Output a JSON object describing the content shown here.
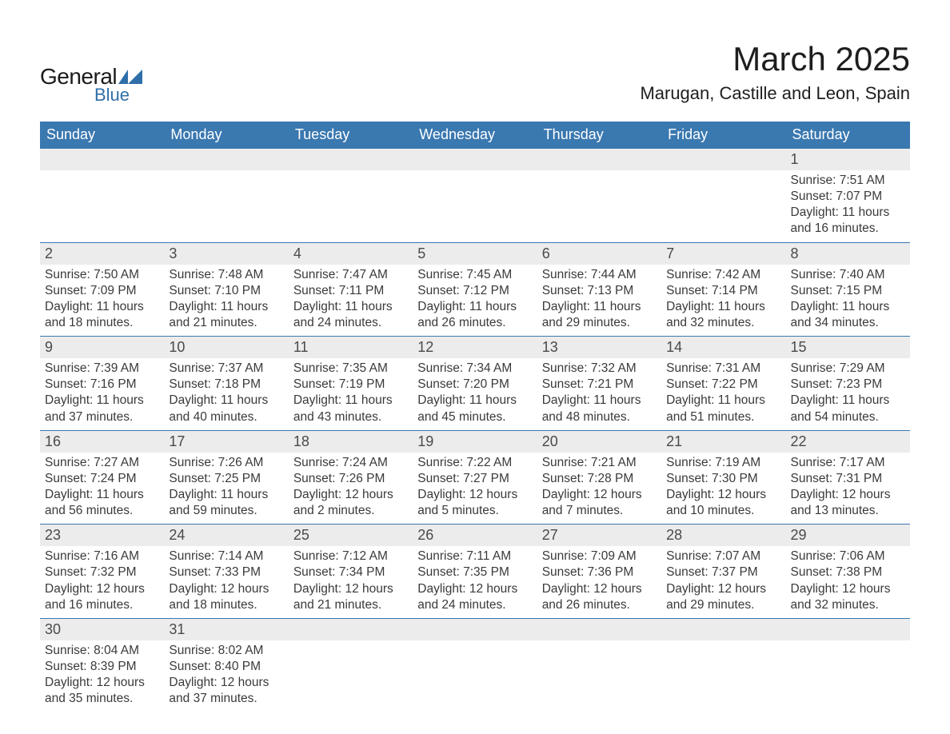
{
  "logo": {
    "text1": "General",
    "text2": "Blue",
    "accent_color": "#2f6fa9"
  },
  "title": "March 2025",
  "location": "Marugan, Castille and Leon, Spain",
  "header_bg": "#3a78b0",
  "header_fg": "#ffffff",
  "daynum_bg": "#ececec",
  "row_border": "#3a78b0",
  "text_color": "#3a3a3a",
  "columns": [
    "Sunday",
    "Monday",
    "Tuesday",
    "Wednesday",
    "Thursday",
    "Friday",
    "Saturday"
  ],
  "weeks": [
    {
      "nums": [
        "",
        "",
        "",
        "",
        "",
        "",
        "1"
      ],
      "data": [
        "",
        "",
        "",
        "",
        "",
        "",
        "Sunrise: 7:51 AM\nSunset: 7:07 PM\nDaylight: 11 hours and 16 minutes."
      ]
    },
    {
      "nums": [
        "2",
        "3",
        "4",
        "5",
        "6",
        "7",
        "8"
      ],
      "data": [
        "Sunrise: 7:50 AM\nSunset: 7:09 PM\nDaylight: 11 hours and 18 minutes.",
        "Sunrise: 7:48 AM\nSunset: 7:10 PM\nDaylight: 11 hours and 21 minutes.",
        "Sunrise: 7:47 AM\nSunset: 7:11 PM\nDaylight: 11 hours and 24 minutes.",
        "Sunrise: 7:45 AM\nSunset: 7:12 PM\nDaylight: 11 hours and 26 minutes.",
        "Sunrise: 7:44 AM\nSunset: 7:13 PM\nDaylight: 11 hours and 29 minutes.",
        "Sunrise: 7:42 AM\nSunset: 7:14 PM\nDaylight: 11 hours and 32 minutes.",
        "Sunrise: 7:40 AM\nSunset: 7:15 PM\nDaylight: 11 hours and 34 minutes."
      ]
    },
    {
      "nums": [
        "9",
        "10",
        "11",
        "12",
        "13",
        "14",
        "15"
      ],
      "data": [
        "Sunrise: 7:39 AM\nSunset: 7:16 PM\nDaylight: 11 hours and 37 minutes.",
        "Sunrise: 7:37 AM\nSunset: 7:18 PM\nDaylight: 11 hours and 40 minutes.",
        "Sunrise: 7:35 AM\nSunset: 7:19 PM\nDaylight: 11 hours and 43 minutes.",
        "Sunrise: 7:34 AM\nSunset: 7:20 PM\nDaylight: 11 hours and 45 minutes.",
        "Sunrise: 7:32 AM\nSunset: 7:21 PM\nDaylight: 11 hours and 48 minutes.",
        "Sunrise: 7:31 AM\nSunset: 7:22 PM\nDaylight: 11 hours and 51 minutes.",
        "Sunrise: 7:29 AM\nSunset: 7:23 PM\nDaylight: 11 hours and 54 minutes."
      ]
    },
    {
      "nums": [
        "16",
        "17",
        "18",
        "19",
        "20",
        "21",
        "22"
      ],
      "data": [
        "Sunrise: 7:27 AM\nSunset: 7:24 PM\nDaylight: 11 hours and 56 minutes.",
        "Sunrise: 7:26 AM\nSunset: 7:25 PM\nDaylight: 11 hours and 59 minutes.",
        "Sunrise: 7:24 AM\nSunset: 7:26 PM\nDaylight: 12 hours and 2 minutes.",
        "Sunrise: 7:22 AM\nSunset: 7:27 PM\nDaylight: 12 hours and 5 minutes.",
        "Sunrise: 7:21 AM\nSunset: 7:28 PM\nDaylight: 12 hours and 7 minutes.",
        "Sunrise: 7:19 AM\nSunset: 7:30 PM\nDaylight: 12 hours and 10 minutes.",
        "Sunrise: 7:17 AM\nSunset: 7:31 PM\nDaylight: 12 hours and 13 minutes."
      ]
    },
    {
      "nums": [
        "23",
        "24",
        "25",
        "26",
        "27",
        "28",
        "29"
      ],
      "data": [
        "Sunrise: 7:16 AM\nSunset: 7:32 PM\nDaylight: 12 hours and 16 minutes.",
        "Sunrise: 7:14 AM\nSunset: 7:33 PM\nDaylight: 12 hours and 18 minutes.",
        "Sunrise: 7:12 AM\nSunset: 7:34 PM\nDaylight: 12 hours and 21 minutes.",
        "Sunrise: 7:11 AM\nSunset: 7:35 PM\nDaylight: 12 hours and 24 minutes.",
        "Sunrise: 7:09 AM\nSunset: 7:36 PM\nDaylight: 12 hours and 26 minutes.",
        "Sunrise: 7:07 AM\nSunset: 7:37 PM\nDaylight: 12 hours and 29 minutes.",
        "Sunrise: 7:06 AM\nSunset: 7:38 PM\nDaylight: 12 hours and 32 minutes."
      ]
    },
    {
      "nums": [
        "30",
        "31",
        "",
        "",
        "",
        "",
        ""
      ],
      "data": [
        "Sunrise: 8:04 AM\nSunset: 8:39 PM\nDaylight: 12 hours and 35 minutes.",
        "Sunrise: 8:02 AM\nSunset: 8:40 PM\nDaylight: 12 hours and 37 minutes.",
        "",
        "",
        "",
        "",
        ""
      ]
    }
  ]
}
